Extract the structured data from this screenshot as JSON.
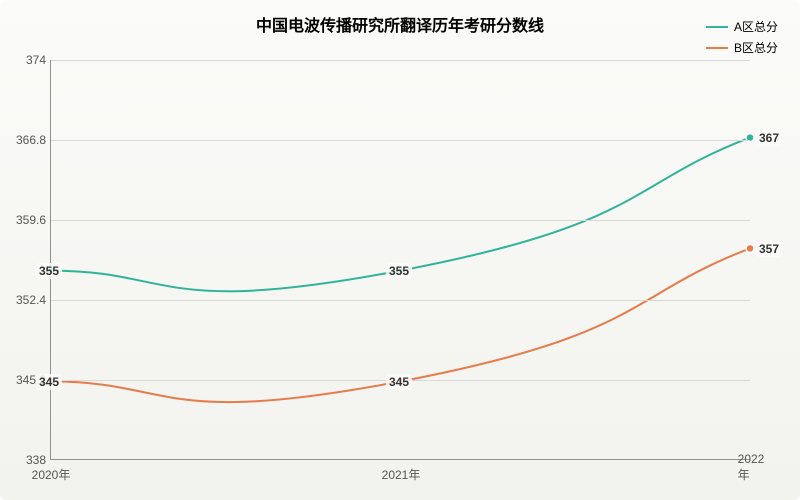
{
  "chart": {
    "type": "line",
    "title": "中国电波传播研究所翻译历年考研分数线",
    "title_fontsize": 16,
    "background_gradient": [
      "#fbfbf9",
      "#f2f2ee"
    ],
    "grid_color": "#d8d8d4",
    "axis_color": "#909090",
    "label_fontsize": 12,
    "ylim": [
      338,
      374
    ],
    "yticks": [
      338,
      345.2,
      352.4,
      359.6,
      366.8,
      374
    ],
    "xcategories": [
      "2020年",
      "2021年",
      "2022年"
    ],
    "legend_position": "top-right",
    "series": [
      {
        "name": "A区总分",
        "color": "#2fb39a",
        "values": [
          355,
          355,
          367
        ],
        "line_width": 2,
        "marker": "circle",
        "marker_size": 4
      },
      {
        "name": "B区总分",
        "color": "#e77b4b",
        "values": [
          345,
          345,
          357
        ],
        "line_width": 2,
        "marker": "circle",
        "marker_size": 4
      }
    ]
  }
}
